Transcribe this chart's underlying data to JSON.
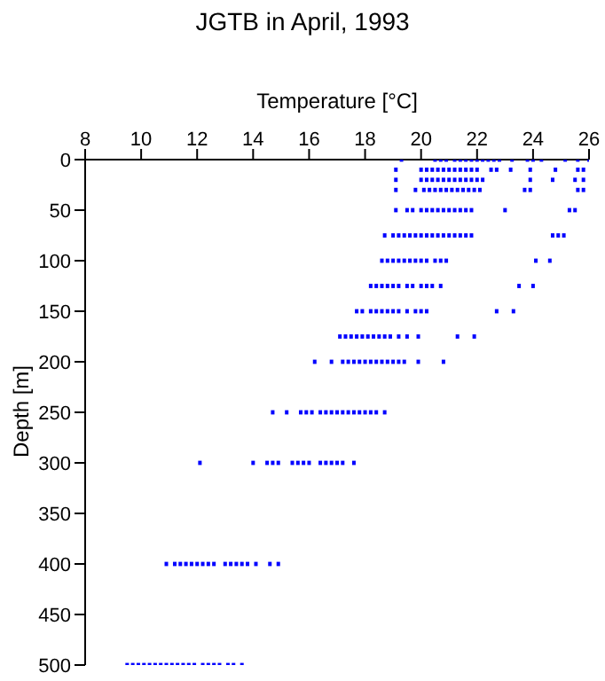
{
  "chart_data": {
    "type": "scatter",
    "title": "JGTB in April, 1993",
    "xlabel": "Temperature [°C]",
    "ylabel": "Depth [m]",
    "xlim": [
      8,
      26
    ],
    "xticks": [
      8,
      10,
      12,
      14,
      16,
      18,
      20,
      22,
      24,
      26
    ],
    "ylim": [
      500,
      0
    ],
    "yticks": [
      0,
      50,
      100,
      150,
      200,
      250,
      300,
      350,
      400,
      450,
      500
    ],
    "grid": false,
    "marker": "square",
    "series": [
      {
        "color": "#0000ff",
        "x": [
          19.3,
          20.5,
          20.7,
          20.9,
          21.2,
          21.4,
          21.6,
          21.8,
          22.0,
          22.2,
          22.4,
          22.6,
          22.8,
          23.25,
          23.8,
          24.0,
          24.3,
          25.15,
          25.6,
          26.0
        ],
        "values": [
          0,
          0,
          0,
          0,
          0,
          0,
          0,
          0,
          0,
          0,
          0,
          0,
          0,
          0,
          0,
          0,
          0,
          0,
          0,
          0
        ]
      },
      {
        "color": "#0000ff",
        "x": [
          19.1,
          20.0,
          20.2,
          20.4,
          20.6,
          20.8,
          21.0,
          21.2,
          21.4,
          21.6,
          21.8,
          22.0,
          22.5,
          22.7,
          23.2,
          23.9,
          24.8,
          25.6,
          25.8
        ],
        "values": [
          10,
          10,
          10,
          10,
          10,
          10,
          10,
          10,
          10,
          10,
          10,
          10,
          10,
          10,
          10,
          10,
          10,
          10,
          10
        ]
      },
      {
        "color": "#0000ff",
        "x": [
          19.1,
          20.0,
          20.2,
          20.4,
          20.6,
          20.8,
          21.0,
          21.2,
          21.4,
          21.6,
          21.8,
          22.0,
          22.2,
          23.9,
          24.7,
          25.5,
          25.8
        ],
        "values": [
          20,
          20,
          20,
          20,
          20,
          20,
          20,
          20,
          20,
          20,
          20,
          20,
          20,
          20,
          20,
          20,
          20
        ]
      },
      {
        "color": "#0000ff",
        "x": [
          19.1,
          19.8,
          20.1,
          20.3,
          20.5,
          20.7,
          20.9,
          21.1,
          21.3,
          21.5,
          21.7,
          21.9,
          22.1,
          23.7,
          23.9,
          25.6,
          25.8
        ],
        "values": [
          30,
          30,
          30,
          30,
          30,
          30,
          30,
          30,
          30,
          30,
          30,
          30,
          30,
          30,
          30,
          30,
          30
        ]
      },
      {
        "color": "#0000ff",
        "x": [
          19.1,
          19.5,
          19.7,
          20.0,
          20.2,
          20.4,
          20.6,
          20.8,
          21.0,
          21.2,
          21.4,
          21.6,
          21.8,
          23.0,
          25.3,
          25.5
        ],
        "values": [
          50,
          50,
          50,
          50,
          50,
          50,
          50,
          50,
          50,
          50,
          50,
          50,
          50,
          50,
          50,
          50
        ]
      },
      {
        "color": "#0000ff",
        "x": [
          18.7,
          19.0,
          19.2,
          19.4,
          19.6,
          19.8,
          20.0,
          20.2,
          20.4,
          20.6,
          20.8,
          21.0,
          21.2,
          21.4,
          21.6,
          21.8,
          24.7,
          24.9,
          25.1
        ],
        "values": [
          75,
          75,
          75,
          75,
          75,
          75,
          75,
          75,
          75,
          75,
          75,
          75,
          75,
          75,
          75,
          75,
          75,
          75,
          75
        ]
      },
      {
        "color": "#0000ff",
        "x": [
          18.6,
          18.8,
          19.0,
          19.2,
          19.4,
          19.6,
          19.8,
          20.0,
          20.2,
          20.5,
          20.7,
          20.9,
          24.1,
          24.6
        ],
        "values": [
          100,
          100,
          100,
          100,
          100,
          100,
          100,
          100,
          100,
          100,
          100,
          100,
          100,
          100
        ]
      },
      {
        "color": "#0000ff",
        "x": [
          18.2,
          18.4,
          18.6,
          18.8,
          19.0,
          19.2,
          19.5,
          19.7,
          20.0,
          20.2,
          20.4,
          20.7,
          23.5,
          24.0
        ],
        "values": [
          125,
          125,
          125,
          125,
          125,
          125,
          125,
          125,
          125,
          125,
          125,
          125,
          125,
          125
        ]
      },
      {
        "color": "#0000ff",
        "x": [
          17.7,
          17.9,
          18.2,
          18.4,
          18.6,
          18.8,
          19.0,
          19.2,
          19.5,
          19.8,
          20.0,
          20.2,
          22.7,
          23.3
        ],
        "values": [
          150,
          150,
          150,
          150,
          150,
          150,
          150,
          150,
          150,
          150,
          150,
          150,
          150,
          150
        ]
      },
      {
        "color": "#0000ff",
        "x": [
          17.1,
          17.3,
          17.5,
          17.7,
          17.9,
          18.1,
          18.3,
          18.5,
          18.7,
          18.9,
          19.2,
          19.5,
          19.9,
          21.3,
          21.9
        ],
        "values": [
          175,
          175,
          175,
          175,
          175,
          175,
          175,
          175,
          175,
          175,
          175,
          175,
          175,
          175,
          175
        ]
      },
      {
        "color": "#0000ff",
        "x": [
          16.2,
          16.8,
          17.2,
          17.4,
          17.6,
          17.8,
          18.0,
          18.2,
          18.4,
          18.6,
          18.8,
          19.0,
          19.2,
          19.4,
          19.9,
          20.8
        ],
        "values": [
          200,
          200,
          200,
          200,
          200,
          200,
          200,
          200,
          200,
          200,
          200,
          200,
          200,
          200,
          200,
          200
        ]
      },
      {
        "color": "#0000ff",
        "x": [
          14.7,
          15.2,
          15.7,
          15.9,
          16.1,
          16.4,
          16.6,
          16.8,
          17.0,
          17.2,
          17.4,
          17.6,
          17.8,
          18.0,
          18.2,
          18.4,
          18.7
        ],
        "values": [
          250,
          250,
          250,
          250,
          250,
          250,
          250,
          250,
          250,
          250,
          250,
          250,
          250,
          250,
          250,
          250,
          250
        ]
      },
      {
        "color": "#0000ff",
        "x": [
          12.1,
          14.0,
          14.5,
          14.7,
          14.9,
          15.4,
          15.6,
          15.8,
          16.0,
          16.4,
          16.6,
          16.8,
          17.0,
          17.2,
          17.6
        ],
        "values": [
          300,
          300,
          300,
          300,
          300,
          300,
          300,
          300,
          300,
          300,
          300,
          300,
          300,
          300,
          300
        ]
      },
      {
        "color": "#0000ff",
        "x": [
          10.9,
          11.2,
          11.4,
          11.6,
          11.8,
          12.0,
          12.2,
          12.4,
          12.6,
          13.0,
          13.2,
          13.4,
          13.6,
          13.8,
          14.1,
          14.6,
          14.9
        ],
        "values": [
          400,
          400,
          400,
          400,
          400,
          400,
          400,
          400,
          400,
          400,
          400,
          400,
          400,
          400,
          400,
          400,
          400
        ]
      },
      {
        "color": "#0000ff",
        "x": [
          9.5,
          9.7,
          9.9,
          10.1,
          10.3,
          10.5,
          10.7,
          10.9,
          11.1,
          11.3,
          11.5,
          11.7,
          11.9,
          12.2,
          12.4,
          12.6,
          12.8,
          13.1,
          13.3,
          13.6
        ],
        "values": [
          500,
          500,
          500,
          500,
          500,
          500,
          500,
          500,
          500,
          500,
          500,
          500,
          500,
          500,
          500,
          500,
          500,
          500,
          500,
          500
        ]
      }
    ]
  }
}
